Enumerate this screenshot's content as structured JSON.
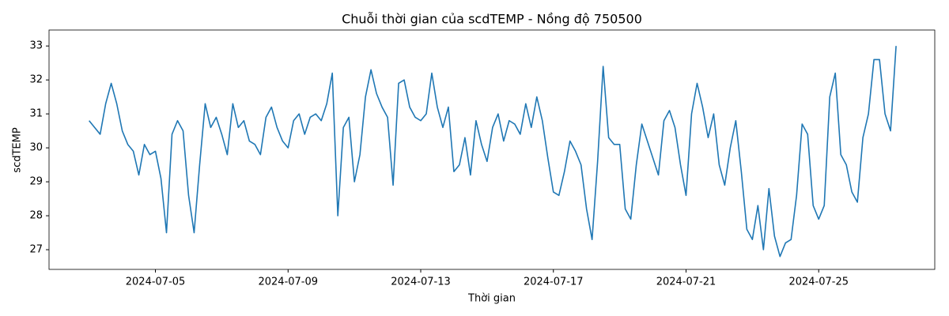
{
  "chart_data": {
    "type": "line",
    "title": "Chuỗi thời gian của scdTEMP - Nồng độ 750500",
    "x_label": "Thời gian",
    "y_label": "scdTEMP",
    "xlim": [
      "2024-07-01 19:00",
      "2024-07-28 12:00"
    ],
    "xticks": [
      "2024-07-05",
      "2024-07-09",
      "2024-07-13",
      "2024-07-17",
      "2024-07-21",
      "2024-07-25"
    ],
    "ylim": [
      26.42,
      33.47
    ],
    "yticks": [
      27,
      28,
      29,
      30,
      31,
      32,
      33
    ],
    "grid": false,
    "x": [
      "2024-07-03 00:00",
      "2024-07-03 04:00",
      "2024-07-03 08:00",
      "2024-07-03 12:00",
      "2024-07-03 16:00",
      "2024-07-03 20:00",
      "2024-07-04 00:00",
      "2024-07-04 04:00",
      "2024-07-04 08:00",
      "2024-07-04 12:00",
      "2024-07-04 16:00",
      "2024-07-04 20:00",
      "2024-07-05 00:00",
      "2024-07-05 04:00",
      "2024-07-05 08:00",
      "2024-07-05 12:00",
      "2024-07-05 16:00",
      "2024-07-05 20:00",
      "2024-07-06 00:00",
      "2024-07-06 04:00",
      "2024-07-06 08:00",
      "2024-07-06 12:00",
      "2024-07-06 16:00",
      "2024-07-06 20:00",
      "2024-07-07 00:00",
      "2024-07-07 04:00",
      "2024-07-07 08:00",
      "2024-07-07 12:00",
      "2024-07-07 16:00",
      "2024-07-07 20:00",
      "2024-07-08 00:00",
      "2024-07-08 04:00",
      "2024-07-08 08:00",
      "2024-07-08 12:00",
      "2024-07-08 16:00",
      "2024-07-08 20:00",
      "2024-07-09 00:00",
      "2024-07-09 04:00",
      "2024-07-09 08:00",
      "2024-07-09 12:00",
      "2024-07-09 16:00",
      "2024-07-09 20:00",
      "2024-07-10 00:00",
      "2024-07-10 04:00",
      "2024-07-10 08:00",
      "2024-07-10 12:00",
      "2024-07-10 16:00",
      "2024-07-10 20:00",
      "2024-07-11 00:00",
      "2024-07-11 04:00",
      "2024-07-11 08:00",
      "2024-07-11 12:00",
      "2024-07-11 16:00",
      "2024-07-11 20:00",
      "2024-07-12 00:00",
      "2024-07-12 04:00",
      "2024-07-12 08:00",
      "2024-07-12 12:00",
      "2024-07-12 16:00",
      "2024-07-12 20:00",
      "2024-07-13 00:00",
      "2024-07-13 04:00",
      "2024-07-13 08:00",
      "2024-07-13 12:00",
      "2024-07-13 16:00",
      "2024-07-13 20:00",
      "2024-07-14 00:00",
      "2024-07-14 04:00",
      "2024-07-14 08:00",
      "2024-07-14 12:00",
      "2024-07-14 16:00",
      "2024-07-14 20:00",
      "2024-07-15 00:00",
      "2024-07-15 04:00",
      "2024-07-15 08:00",
      "2024-07-15 12:00",
      "2024-07-15 16:00",
      "2024-07-15 20:00",
      "2024-07-16 00:00",
      "2024-07-16 04:00",
      "2024-07-16 08:00",
      "2024-07-16 12:00",
      "2024-07-16 16:00",
      "2024-07-16 20:00",
      "2024-07-17 00:00",
      "2024-07-17 04:00",
      "2024-07-17 08:00",
      "2024-07-17 12:00",
      "2024-07-17 16:00",
      "2024-07-17 20:00",
      "2024-07-18 00:00",
      "2024-07-18 04:00",
      "2024-07-18 08:00",
      "2024-07-18 12:00",
      "2024-07-18 16:00",
      "2024-07-18 20:00",
      "2024-07-19 00:00",
      "2024-07-19 04:00",
      "2024-07-19 08:00",
      "2024-07-19 12:00",
      "2024-07-19 16:00",
      "2024-07-19 20:00",
      "2024-07-20 00:00",
      "2024-07-20 04:00",
      "2024-07-20 08:00",
      "2024-07-20 12:00",
      "2024-07-20 16:00",
      "2024-07-20 20:00",
      "2024-07-21 00:00",
      "2024-07-21 04:00",
      "2024-07-21 08:00",
      "2024-07-21 12:00",
      "2024-07-21 16:00",
      "2024-07-21 20:00",
      "2024-07-22 00:00",
      "2024-07-22 04:00",
      "2024-07-22 08:00",
      "2024-07-22 12:00",
      "2024-07-22 16:00",
      "2024-07-22 20:00",
      "2024-07-23 00:00",
      "2024-07-23 04:00",
      "2024-07-23 08:00",
      "2024-07-23 12:00",
      "2024-07-23 16:00",
      "2024-07-23 20:00",
      "2024-07-24 00:00",
      "2024-07-24 04:00",
      "2024-07-24 08:00",
      "2024-07-24 12:00",
      "2024-07-24 16:00",
      "2024-07-24 20:00",
      "2024-07-25 00:00",
      "2024-07-25 04:00",
      "2024-07-25 08:00",
      "2024-07-25 12:00",
      "2024-07-25 16:00",
      "2024-07-25 20:00",
      "2024-07-26 00:00",
      "2024-07-26 04:00",
      "2024-07-26 08:00",
      "2024-07-26 12:00",
      "2024-07-26 16:00",
      "2024-07-26 20:00",
      "2024-07-27 00:00",
      "2024-07-27 04:00",
      "2024-07-27 08:00"
    ],
    "series": [
      {
        "name": "scdTEMP",
        "color": "#1f77b4",
        "values": [
          30.8,
          30.6,
          30.4,
          31.3,
          31.9,
          31.3,
          30.5,
          30.1,
          29.9,
          29.2,
          30.1,
          29.8,
          29.9,
          29.1,
          27.5,
          30.4,
          30.8,
          30.5,
          28.6,
          27.5,
          29.5,
          31.3,
          30.6,
          30.9,
          30.4,
          29.8,
          31.3,
          30.6,
          30.8,
          30.2,
          30.1,
          29.8,
          30.9,
          31.2,
          30.6,
          30.2,
          30.0,
          30.8,
          31.0,
          30.4,
          30.9,
          31.0,
          30.8,
          31.3,
          32.2,
          28.0,
          30.6,
          30.9,
          29.0,
          29.8,
          31.5,
          32.3,
          31.6,
          31.2,
          30.9,
          28.9,
          31.9,
          32.0,
          31.2,
          30.9,
          30.8,
          31.0,
          32.2,
          31.2,
          30.6,
          31.2,
          29.3,
          29.5,
          30.3,
          29.2,
          30.8,
          30.1,
          29.6,
          30.6,
          31.0,
          30.2,
          30.8,
          30.7,
          30.4,
          31.3,
          30.6,
          31.5,
          30.8,
          29.7,
          28.7,
          28.6,
          29.3,
          30.2,
          29.9,
          29.5,
          28.2,
          27.3,
          29.6,
          32.4,
          30.3,
          30.1,
          30.1,
          28.2,
          27.9,
          29.5,
          30.7,
          30.2,
          29.7,
          29.2,
          30.8,
          31.1,
          30.6,
          29.5,
          28.6,
          31.0,
          31.9,
          31.2,
          30.3,
          31.0,
          29.5,
          28.9,
          30.0,
          30.8,
          29.3,
          27.6,
          27.3,
          28.3,
          27.0,
          28.8,
          27.4,
          26.8,
          27.2,
          27.3,
          28.6,
          30.7,
          30.4,
          28.3,
          27.9,
          28.3,
          31.5,
          32.2,
          29.8,
          29.5,
          28.7,
          28.4,
          30.3,
          31.0,
          32.6,
          32.6,
          31.0,
          30.5,
          33.0
        ]
      }
    ]
  }
}
